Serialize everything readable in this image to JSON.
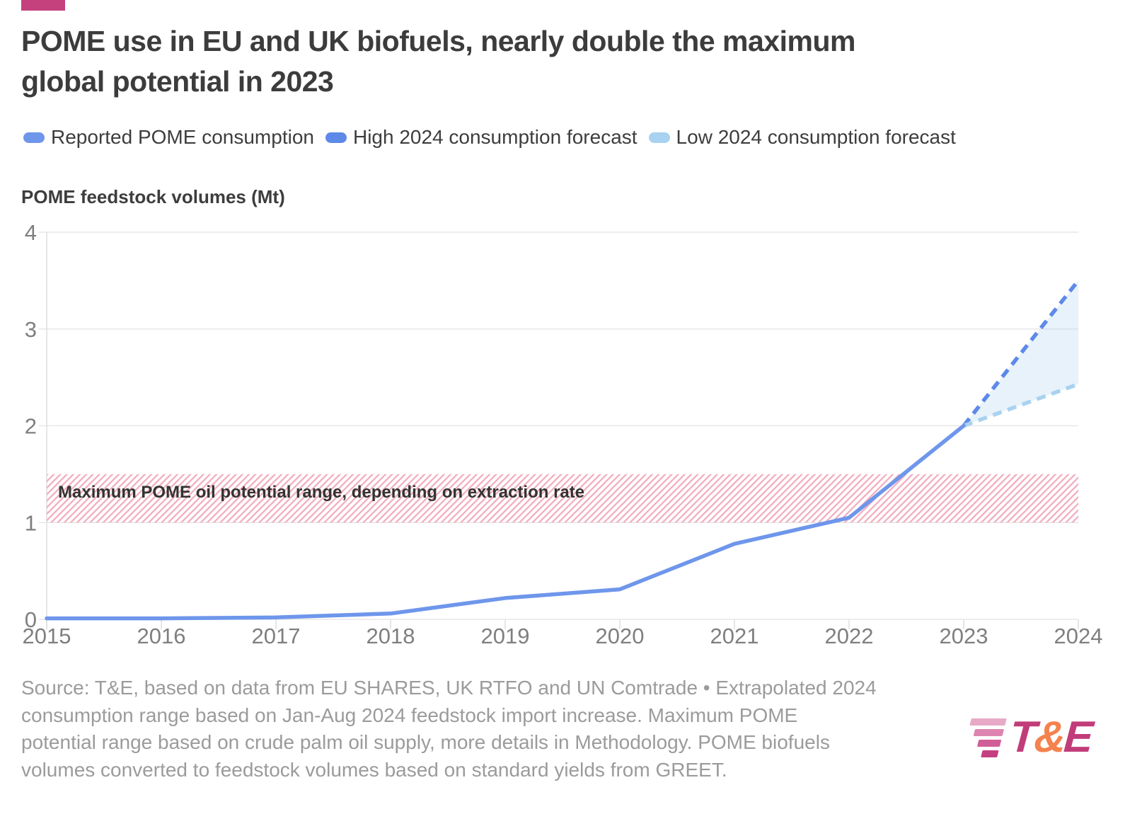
{
  "colors": {
    "accent": "#c4417e",
    "title_text": "#3c3c3c",
    "legend_text": "#3d3d3d",
    "tick_text": "#7f7f7f",
    "grid": "#e7e7e7",
    "axis": "#dedede",
    "band_text": "#333333",
    "source_text": "#9b9b9b",
    "logo_magenta": "#c13d7a",
    "logo_orange": "#f4824d"
  },
  "chart_data": {
    "type": "line",
    "title": "POME use in EU and UK biofuels, nearly double the maximum global potential in 2023",
    "title_lines": [
      "POME use in EU and UK biofuels, nearly double the maximum",
      "global potential in 2023"
    ],
    "ylabel": "POME feedstock volumes (Mt)",
    "xlabel": "",
    "xlim": [
      2015,
      2024
    ],
    "ylim": [
      0,
      4
    ],
    "xticks": [
      2015,
      2016,
      2017,
      2018,
      2019,
      2020,
      2021,
      2022,
      2023,
      2024
    ],
    "yticks": [
      0,
      1,
      2,
      3,
      4
    ],
    "grid": true,
    "legend_position": "top",
    "series": [
      {
        "name": "Reported POME consumption",
        "style": "solid",
        "color": "#6e96eb",
        "x": [
          2015,
          2016,
          2017,
          2018,
          2019,
          2020,
          2021,
          2022,
          2023
        ],
        "values": [
          0.01,
          0.01,
          0.02,
          0.06,
          0.22,
          0.31,
          0.78,
          1.05,
          2.0
        ]
      },
      {
        "name": "High 2024 consumption forecast",
        "style": "dashed",
        "color": "#5d89e9",
        "x": [
          2023,
          2024
        ],
        "values": [
          2.0,
          3.5
        ]
      },
      {
        "name": "Low 2024 consumption forecast",
        "style": "dashed",
        "color": "#a8d2f0",
        "x": [
          2023,
          2024
        ],
        "values": [
          2.0,
          2.43
        ]
      }
    ],
    "forecast_fill": {
      "points": [
        [
          2023,
          2.0
        ],
        [
          2024,
          3.5
        ],
        [
          2024,
          2.43
        ]
      ],
      "color": "#b9d7ef",
      "opacity": 0.32
    },
    "band": {
      "label": "Maximum POME oil potential range, depending on extraction rate",
      "from": 1.0,
      "to": 1.5,
      "stripe_color": "#f2aebf"
    }
  },
  "source": {
    "lines": [
      "Source: T&E, based on data from EU SHARES, UK RTFO and UN Comtrade • Extrapolated 2024",
      "consumption range based on Jan-Aug 2024 feedstock import increase. Maximum POME",
      "potential range based on crude palm oil supply, more details in Methodology. POME biofuels",
      "volumes converted to feedstock volumes based on standard yields from GREET."
    ]
  },
  "logo": {
    "t": "T",
    "amp": "&",
    "e": "E",
    "stripe_colors": [
      "#e7a9c6",
      "#dd85b0",
      "#d15f97",
      "#c43f80"
    ]
  }
}
